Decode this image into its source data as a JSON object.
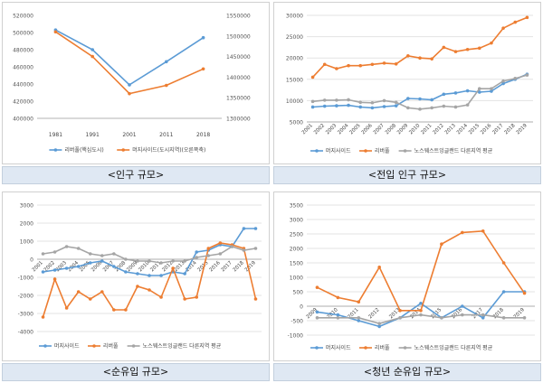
{
  "colors": {
    "blue": "#5b9bd5",
    "orange": "#ed7d31",
    "gray": "#a5a5a5",
    "grid": "#e3e3e3",
    "axis": "#555555"
  },
  "captions": [
    "<인구 규모>",
    "<전입 인구 규모>",
    "<순유입 규모>",
    "<청년 순유입 규모>"
  ],
  "chart_data": [
    {
      "type": "line",
      "categories": [
        "1981",
        "1991",
        "2001",
        "2011",
        "2018"
      ],
      "ylim_left": [
        400000,
        520000
      ],
      "yticks_left": [
        400000,
        420000,
        440000,
        460000,
        480000,
        500000,
        520000
      ],
      "ylim_right": [
        1300000,
        1550000
      ],
      "yticks_right": [
        1300000,
        1350000,
        1400000,
        1450000,
        1500000,
        1550000
      ],
      "grid": false,
      "legend_position": "bottom",
      "series": [
        {
          "name": "리버풀(핵심도시)",
          "axis": "left",
          "color": "#5b9bd5",
          "values": [
            503000,
            480000,
            439000,
            466000,
            494000
          ]
        },
        {
          "name": "머지사이드(도시지역)(오른쪽축)",
          "axis": "right",
          "color": "#ed7d31",
          "values": [
            1510000,
            1450000,
            1360000,
            1380000,
            1420000
          ]
        }
      ]
    },
    {
      "type": "line",
      "categories": [
        "2001",
        "2002",
        "2003",
        "2004",
        "2005",
        "2006",
        "2007",
        "2008",
        "2009",
        "2010",
        "2011",
        "2012",
        "2013",
        "2014",
        "2015",
        "2016",
        "2017",
        "2018",
        "2019"
      ],
      "ylim": [
        5000,
        30000
      ],
      "yticks": [
        5000,
        10000,
        15000,
        20000,
        25000,
        30000
      ],
      "grid": true,
      "legend_position": "bottom",
      "series": [
        {
          "name": "머지사이드",
          "color": "#5b9bd5",
          "values": [
            8500,
            8700,
            8800,
            8900,
            8500,
            8300,
            8600,
            8800,
            10500,
            10400,
            10200,
            11500,
            11800,
            12300,
            12000,
            12200,
            14000,
            15000,
            16200
          ]
        },
        {
          "name": "리버풀",
          "color": "#ed7d31",
          "values": [
            15500,
            18500,
            17500,
            18200,
            18200,
            18500,
            18800,
            18600,
            20500,
            20000,
            19800,
            22500,
            21500,
            22000,
            22300,
            23500,
            27000,
            28400,
            29500
          ]
        },
        {
          "name": "노스웨스트잉글랜드 다른지역 평균",
          "color": "#a5a5a5",
          "values": [
            9800,
            10100,
            10100,
            10200,
            9600,
            9500,
            10000,
            9600,
            8300,
            8000,
            8300,
            8700,
            8500,
            9000,
            12800,
            12800,
            14600,
            15200,
            16000
          ]
        }
      ]
    },
    {
      "type": "line",
      "categories": [
        "2001",
        "2002",
        "2003",
        "2004",
        "2005",
        "2006",
        "2007",
        "2008",
        "2009",
        "2010",
        "2011",
        "2012",
        "2013",
        "2014",
        "2015",
        "2016",
        "2017",
        "2018",
        "2019"
      ],
      "ylim": [
        -4000,
        3000
      ],
      "yticks": [
        -4000,
        -3000,
        -2000,
        -1000,
        0,
        1000,
        2000,
        3000
      ],
      "grid": true,
      "legend_position": "bottom",
      "series": [
        {
          "name": "머지사이드",
          "color": "#5b9bd5",
          "values": [
            -700,
            -600,
            -500,
            -400,
            -200,
            -100,
            -400,
            -700,
            -800,
            -900,
            -900,
            -700,
            -800,
            400,
            500,
            800,
            700,
            1700,
            1700
          ]
        },
        {
          "name": "리버풀",
          "color": "#ed7d31",
          "values": [
            -3200,
            -1100,
            -2700,
            -1800,
            -2200,
            -1800,
            -2800,
            -2800,
            -1500,
            -1700,
            -2100,
            -500,
            -2200,
            -2100,
            600,
            900,
            800,
            600,
            -2200
          ]
        },
        {
          "name": "노스웨스트잉글랜드 다른지역 평균",
          "color": "#a5a5a5",
          "values": [
            300,
            400,
            700,
            600,
            300,
            200,
            300,
            0,
            -100,
            -100,
            -200,
            -100,
            -100,
            100,
            200,
            300,
            700,
            500,
            600
          ]
        }
      ]
    },
    {
      "type": "line",
      "categories": [
        "2009",
        "2010",
        "2011",
        "2012",
        "2013",
        "2014",
        "2015",
        "2016",
        "2017",
        "2018",
        "2019"
      ],
      "ylim": [
        -1000,
        3500
      ],
      "yticks": [
        -1000,
        -500,
        0,
        500,
        1000,
        1500,
        2000,
        2500,
        3000,
        3500
      ],
      "grid": true,
      "legend_position": "bottom",
      "series": [
        {
          "name": "머지사이드",
          "color": "#5b9bd5",
          "values": [
            -200,
            -300,
            -500,
            -700,
            -400,
            100,
            -400,
            0,
            -400,
            500,
            500
          ]
        },
        {
          "name": "리버풀",
          "color": "#ed7d31",
          "values": [
            650,
            300,
            150,
            1350,
            -150,
            -150,
            2150,
            2550,
            2600,
            1500,
            450
          ]
        },
        {
          "name": "노스웨스트잉글랜드 다른지역 평균",
          "color": "#a5a5a5",
          "values": [
            -400,
            -400,
            -400,
            -600,
            -400,
            -300,
            -400,
            -300,
            -300,
            -400,
            -400
          ]
        }
      ]
    }
  ]
}
